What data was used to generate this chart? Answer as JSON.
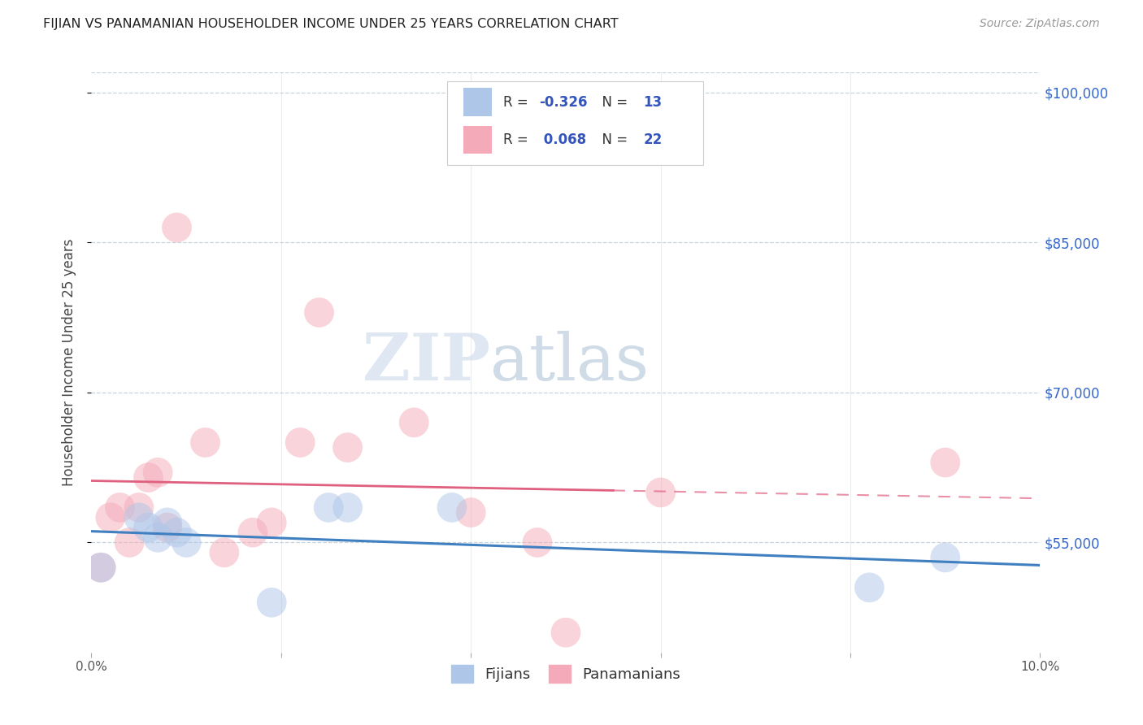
{
  "title": "FIJIAN VS PANAMANIAN HOUSEHOLDER INCOME UNDER 25 YEARS CORRELATION CHART",
  "source": "Source: ZipAtlas.com",
  "ylabel": "Householder Income Under 25 years",
  "xlim": [
    0.0,
    0.1
  ],
  "ylim": [
    44000,
    102000
  ],
  "yticks": [
    55000,
    70000,
    85000,
    100000
  ],
  "ytick_labels": [
    "$55,000",
    "$70,000",
    "$85,000",
    "$100,000"
  ],
  "xticks": [
    0.0,
    0.02,
    0.04,
    0.06,
    0.08,
    0.1
  ],
  "xtick_labels": [
    "0.0%",
    "",
    "",
    "",
    "",
    "10.0%"
  ],
  "legend_bottom_labels": [
    "Fijians",
    "Panamanians"
  ],
  "fijian_R": "-0.326",
  "fijian_N": "13",
  "panamanian_R": "0.068",
  "panamanian_N": "22",
  "fijian_color": "#aec6e8",
  "panamanian_color": "#f4aab8",
  "fijian_line_color": "#4080c0",
  "panamanian_line_color": "#e06080",
  "watermark_zip_color": "#c5d5e5",
  "watermark_atlas_color": "#b0c8dc",
  "background_color": "#ffffff",
  "grid_color": "#c8d4dc",
  "title_color": "#222222",
  "source_color": "#999999",
  "fijian_x": [
    0.001,
    0.005,
    0.006,
    0.007,
    0.008,
    0.009,
    0.01,
    0.019,
    0.025,
    0.027,
    0.038,
    0.082,
    0.09
  ],
  "fijian_y": [
    52500,
    57500,
    56500,
    55500,
    57000,
    56000,
    55000,
    49000,
    58500,
    58500,
    58500,
    50500,
    53500
  ],
  "panamanian_x": [
    0.001,
    0.002,
    0.003,
    0.004,
    0.005,
    0.006,
    0.007,
    0.008,
    0.009,
    0.012,
    0.014,
    0.017,
    0.019,
    0.022,
    0.024,
    0.027,
    0.034,
    0.04,
    0.047,
    0.05,
    0.06,
    0.09
  ],
  "panamanian_y": [
    52500,
    57500,
    58500,
    55000,
    58500,
    61500,
    62000,
    56500,
    86500,
    65000,
    54000,
    56000,
    57000,
    65000,
    78000,
    64500,
    67000,
    58000,
    55000,
    46000,
    60000,
    63000
  ]
}
